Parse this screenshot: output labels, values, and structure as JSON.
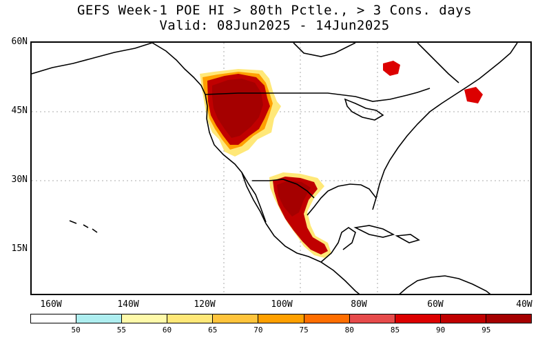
{
  "title": {
    "line1": "GEFS Week-1 POE HI > 80th Pctle., > 3 Cons. days",
    "line2": "Valid: 08Jun2025 - 14Jun2025"
  },
  "axes": {
    "lat_labels": [
      "60N",
      "45N",
      "30N",
      "15N"
    ],
    "lon_labels": [
      "160W",
      "140W",
      "120W",
      "100W",
      "80W",
      "60W",
      "40W"
    ]
  },
  "colorbar": {
    "colors": [
      "#ffffff",
      "#aeeef0",
      "#fffaaa",
      "#ffe878",
      "#ffc43c",
      "#ffa000",
      "#ff6e00",
      "#e64b4b",
      "#dc0000",
      "#c00000",
      "#a50000"
    ],
    "labels": [
      "50",
      "55",
      "60",
      "65",
      "70",
      "75",
      "80",
      "85",
      "90",
      "95"
    ]
  },
  "map_regions": [
    {
      "name": "pacific-northwest-great-basin",
      "level": "95+"
    },
    {
      "name": "south-texas-northern-mexico",
      "level": "95+"
    },
    {
      "name": "southern-mexico-guatemala",
      "level": "90-95"
    },
    {
      "name": "labrador-quebec",
      "level": "85-90"
    },
    {
      "name": "newfoundland",
      "level": "85-90"
    }
  ]
}
